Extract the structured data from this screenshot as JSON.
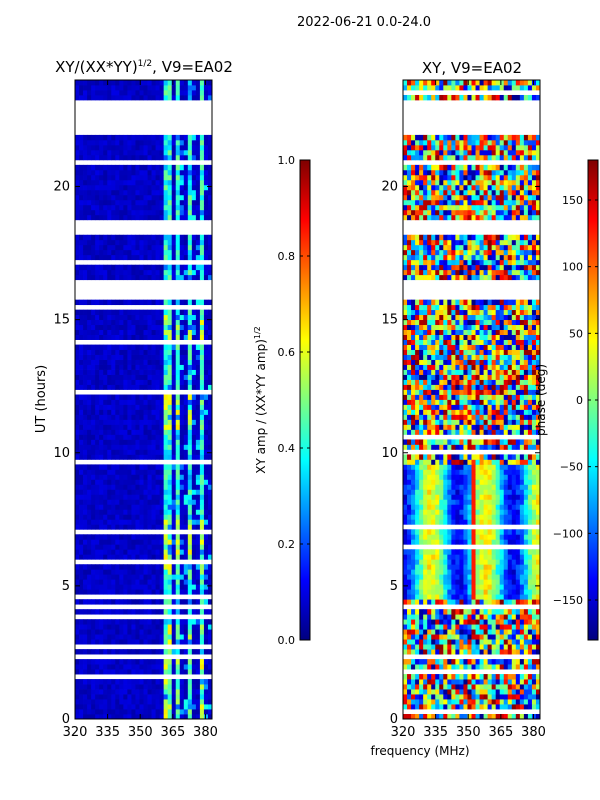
{
  "figure_title": "2022-06-21 0.0-24.0",
  "chart_data": [
    {
      "type": "heatmap",
      "title": "XY/(XX*YY)^1/2, V9=EA02",
      "title_main": "XY/(XX*YY)",
      "title_sup": "1/2",
      "title_tail": ", V9=EA02",
      "xlabel": "",
      "ylabel": "UT (hours)",
      "xlim": [
        320,
        383
      ],
      "ylim": [
        0,
        24
      ],
      "xticks": [
        320,
        335,
        350,
        365,
        380
      ],
      "yticks": [
        0,
        5,
        10,
        15,
        20
      ],
      "colorbar": {
        "label": "XY amp / (XX*YY amp)^1/2",
        "label_main": "XY amp / (XX*YY amp)",
        "label_sup": "1/2",
        "range": [
          0.0,
          1.0
        ],
        "ticks": [
          0.0,
          0.2,
          0.4,
          0.6,
          0.8,
          1.0
        ],
        "tick_labels": [
          "0.0",
          "0.2",
          "0.4",
          "0.6",
          "0.8",
          "1.0"
        ]
      },
      "empty_ut_bands": [
        [
          22.0,
          23.2
        ],
        [
          18.2,
          18.8
        ],
        [
          15.7,
          16.5
        ],
        [
          4.1,
          4.3
        ],
        [
          2.2,
          2.4
        ]
      ],
      "bright_freq_ranges_mhz": [
        [
          361,
          364
        ],
        [
          367,
          369
        ],
        [
          372,
          374
        ],
        [
          377,
          379
        ]
      ],
      "bright_ut_ranges": [
        [
          10.8,
          12.3
        ],
        [
          14.0,
          15.2
        ],
        [
          0.0,
          3.5
        ],
        [
          5.5,
          7.5
        ]
      ],
      "colormap": "jet"
    },
    {
      "type": "heatmap",
      "title": "XY, V9=EA02",
      "xlabel": "frequency (MHz)",
      "ylabel": "",
      "xlim": [
        320,
        383
      ],
      "ylim": [
        0,
        24
      ],
      "xticks": [
        320,
        335,
        350,
        365,
        380
      ],
      "yticks": [
        0,
        5,
        10,
        15,
        20
      ],
      "colorbar": {
        "label": "phase (deg)",
        "range": [
          -180,
          180
        ],
        "ticks": [
          -150,
          -100,
          -50,
          0,
          50,
          100,
          150
        ],
        "tick_labels": [
          "−150",
          "−100",
          "−50",
          "0",
          "50",
          "100",
          "150"
        ]
      },
      "empty_ut_bands": [
        [
          22.0,
          23.2
        ],
        [
          18.2,
          18.8
        ],
        [
          15.7,
          16.5
        ],
        [
          4.1,
          4.3
        ],
        [
          2.2,
          2.4
        ]
      ],
      "colormap": "jet"
    }
  ],
  "colors": {
    "jet_stops": [
      "#00007f",
      "#0000ff",
      "#007fff",
      "#00ffff",
      "#7fff7f",
      "#ffff00",
      "#ff7f00",
      "#ff0000",
      "#7f0000"
    ]
  }
}
